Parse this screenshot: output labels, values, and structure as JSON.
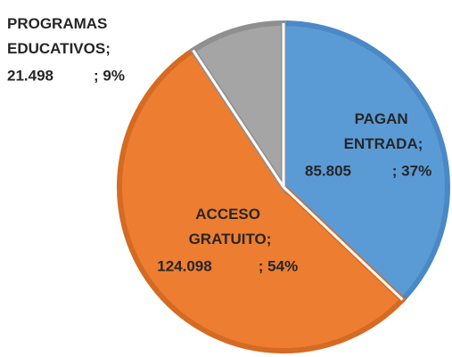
{
  "chart_data": {
    "type": "pie",
    "categories": [
      "PAGAN ENTRADA;",
      "ACCESO GRATUITO;",
      "PROGRAMAS EDUCATIVOS;"
    ],
    "values": [
      85805,
      124098,
      21498
    ],
    "value_labels": [
      "85.805",
      "124.098",
      "21.498"
    ],
    "percent_values": [
      37,
      54,
      9
    ],
    "percent_labels": [
      "; 37%",
      "; 54%",
      "; 9%"
    ],
    "colors": [
      "#5b9bd5",
      "#ed7d31",
      "#a5a5a5"
    ],
    "edge_colors": [
      "#4a88c6",
      "#d56a22",
      "#8f8f8f"
    ]
  }
}
